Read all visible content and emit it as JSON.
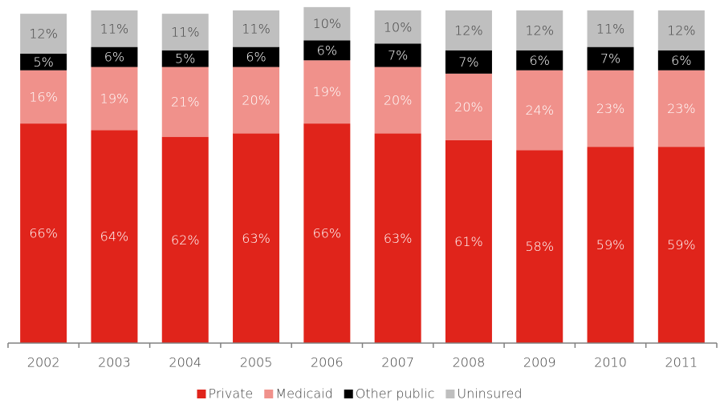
{
  "chart_data": {
    "type": "stacked_bar",
    "categories": [
      "2002",
      "2003",
      "2004",
      "2005",
      "2006",
      "2007",
      "2008",
      "2009",
      "2010",
      "2011"
    ],
    "ylim": [
      0,
      100
    ],
    "legend": "bottom",
    "series": [
      {
        "name": "Private",
        "color": "#e0241b",
        "label_color": "#ffffff",
        "values": [
          66,
          64,
          62,
          63,
          66,
          63,
          61,
          58,
          59,
          59
        ],
        "value_labels": [
          "66%",
          "64%",
          "62%",
          "63%",
          "66%",
          "63%",
          "61%",
          "58%",
          "59%",
          "59%"
        ]
      },
      {
        "name": "Medicaid",
        "color": "#f0918b",
        "label_color": "#ffffff",
        "values": [
          16,
          19,
          21,
          20,
          19,
          20,
          20,
          24,
          23,
          23
        ],
        "value_labels": [
          "16%",
          "19%",
          "21%",
          "20%",
          "19%",
          "20%",
          "20%",
          "24%",
          "23%",
          "23%"
        ]
      },
      {
        "name": "Other public",
        "color": "#000000",
        "label_color": "#ffffff",
        "values": [
          5,
          6,
          5,
          6,
          6,
          7,
          7,
          6,
          7,
          6
        ],
        "value_labels": [
          "5%",
          "6%",
          "5%",
          "6%",
          "6%",
          "7%",
          "7%",
          "6%",
          "7%",
          "6%"
        ]
      },
      {
        "name": "Uninsured",
        "color": "#bfbfbf",
        "label_color": "#404040",
        "values": [
          12,
          11,
          11,
          11,
          10,
          10,
          12,
          12,
          11,
          12
        ],
        "value_labels": [
          "12%",
          "11%",
          "11%",
          "11%",
          "10%",
          "10%",
          "12%",
          "12%",
          "11%",
          "12%"
        ]
      }
    ]
  }
}
